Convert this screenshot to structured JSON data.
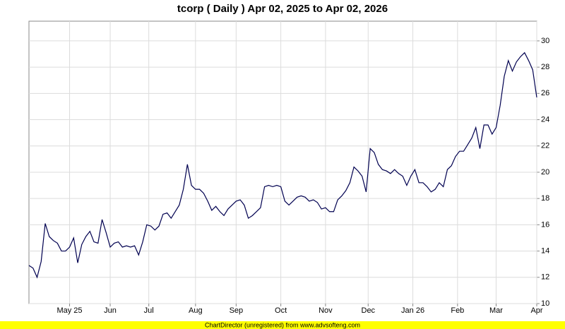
{
  "chart_data": {
    "type": "line",
    "title": "tcorp ( Daily ) Apr 02, 2025 to Apr 02, 2026",
    "footnote": "ChartDirector (unregistered) from www.advsofteng.com",
    "x": [
      0,
      2,
      4,
      6,
      8,
      10,
      12,
      14,
      16,
      18,
      20,
      22,
      24,
      26,
      28,
      30,
      32,
      34,
      36,
      38,
      40,
      42,
      44,
      46,
      48,
      50,
      52,
      54,
      56,
      58,
      60,
      62,
      64,
      66,
      68,
      70,
      72,
      74,
      76,
      78,
      80,
      82,
      84,
      86,
      88,
      90,
      92,
      94,
      96,
      98,
      100,
      102,
      104,
      106,
      108,
      110,
      112,
      114,
      116,
      118,
      120,
      122,
      124,
      126,
      128,
      130,
      132,
      134,
      136,
      138,
      140,
      142,
      144,
      146,
      148,
      150,
      152,
      154,
      156,
      158,
      160,
      162,
      164,
      166,
      168,
      170,
      172,
      174,
      176,
      178,
      180,
      182,
      184,
      186,
      188,
      190,
      192,
      194,
      196,
      198,
      200,
      202,
      204,
      206,
      208,
      210,
      212,
      214,
      216,
      218,
      220,
      222,
      224,
      226,
      228,
      230,
      232,
      234,
      236,
      238,
      240,
      242,
      244,
      246,
      248,
      250
    ],
    "series": [
      {
        "name": "tcorp",
        "color": "#000050",
        "values": [
          12.9,
          12.7,
          12.0,
          13.2,
          16.1,
          15.1,
          14.8,
          14.6,
          14.0,
          14.0,
          14.3,
          15.0,
          13.1,
          14.5,
          15.1,
          15.5,
          14.7,
          14.6,
          16.4,
          15.4,
          14.3,
          14.6,
          14.7,
          14.3,
          14.4,
          14.3,
          14.4,
          13.7,
          14.7,
          16.0,
          15.9,
          15.6,
          15.9,
          16.8,
          16.9,
          16.5,
          17.0,
          17.5,
          18.7,
          20.6,
          19.0,
          18.7,
          18.7,
          18.4,
          17.8,
          17.1,
          17.4,
          17.0,
          16.7,
          17.2,
          17.5,
          17.8,
          17.9,
          17.5,
          16.5,
          16.7,
          17.0,
          17.3,
          18.9,
          19.0,
          18.9,
          19.0,
          18.9,
          17.8,
          17.5,
          17.8,
          18.1,
          18.2,
          18.1,
          17.8,
          17.9,
          17.7,
          17.2,
          17.3,
          17.0,
          17.0,
          17.9,
          18.2,
          18.6,
          19.2,
          20.4,
          20.1,
          19.7,
          18.5,
          21.8,
          21.5,
          20.6,
          20.2,
          20.1,
          19.9,
          20.2,
          19.9,
          19.7,
          19.0,
          19.7,
          20.2,
          19.2,
          19.2,
          18.9,
          18.5,
          18.7,
          19.2,
          18.9,
          20.2,
          20.5,
          21.2,
          21.6,
          21.6,
          22.1,
          22.6,
          23.4,
          21.8,
          23.6,
          23.6,
          22.9,
          23.4,
          25.1,
          27.3,
          28.5,
          27.7,
          28.4,
          28.8,
          29.1,
          28.5,
          27.8,
          25.7
        ]
      }
    ],
    "xlim": [
      0,
      250
    ],
    "xticks": [
      {
        "value": 20,
        "label": "May 25"
      },
      {
        "value": 40,
        "label": "Jun"
      },
      {
        "value": 59,
        "label": "Jul"
      },
      {
        "value": 82,
        "label": "Aug"
      },
      {
        "value": 102,
        "label": "Sep"
      },
      {
        "value": 124,
        "label": "Oct"
      },
      {
        "value": 146,
        "label": "Nov"
      },
      {
        "value": 167,
        "label": "Dec"
      },
      {
        "value": 189,
        "label": "Jan 26"
      },
      {
        "value": 211,
        "label": "Feb"
      },
      {
        "value": 230,
        "label": "Mar"
      },
      {
        "value": 250,
        "label": "Apr"
      }
    ],
    "ylim": [
      10,
      31.5
    ],
    "yticks": [
      10,
      12,
      14,
      16,
      18,
      20,
      22,
      24,
      26,
      28,
      30
    ],
    "grid": true
  }
}
